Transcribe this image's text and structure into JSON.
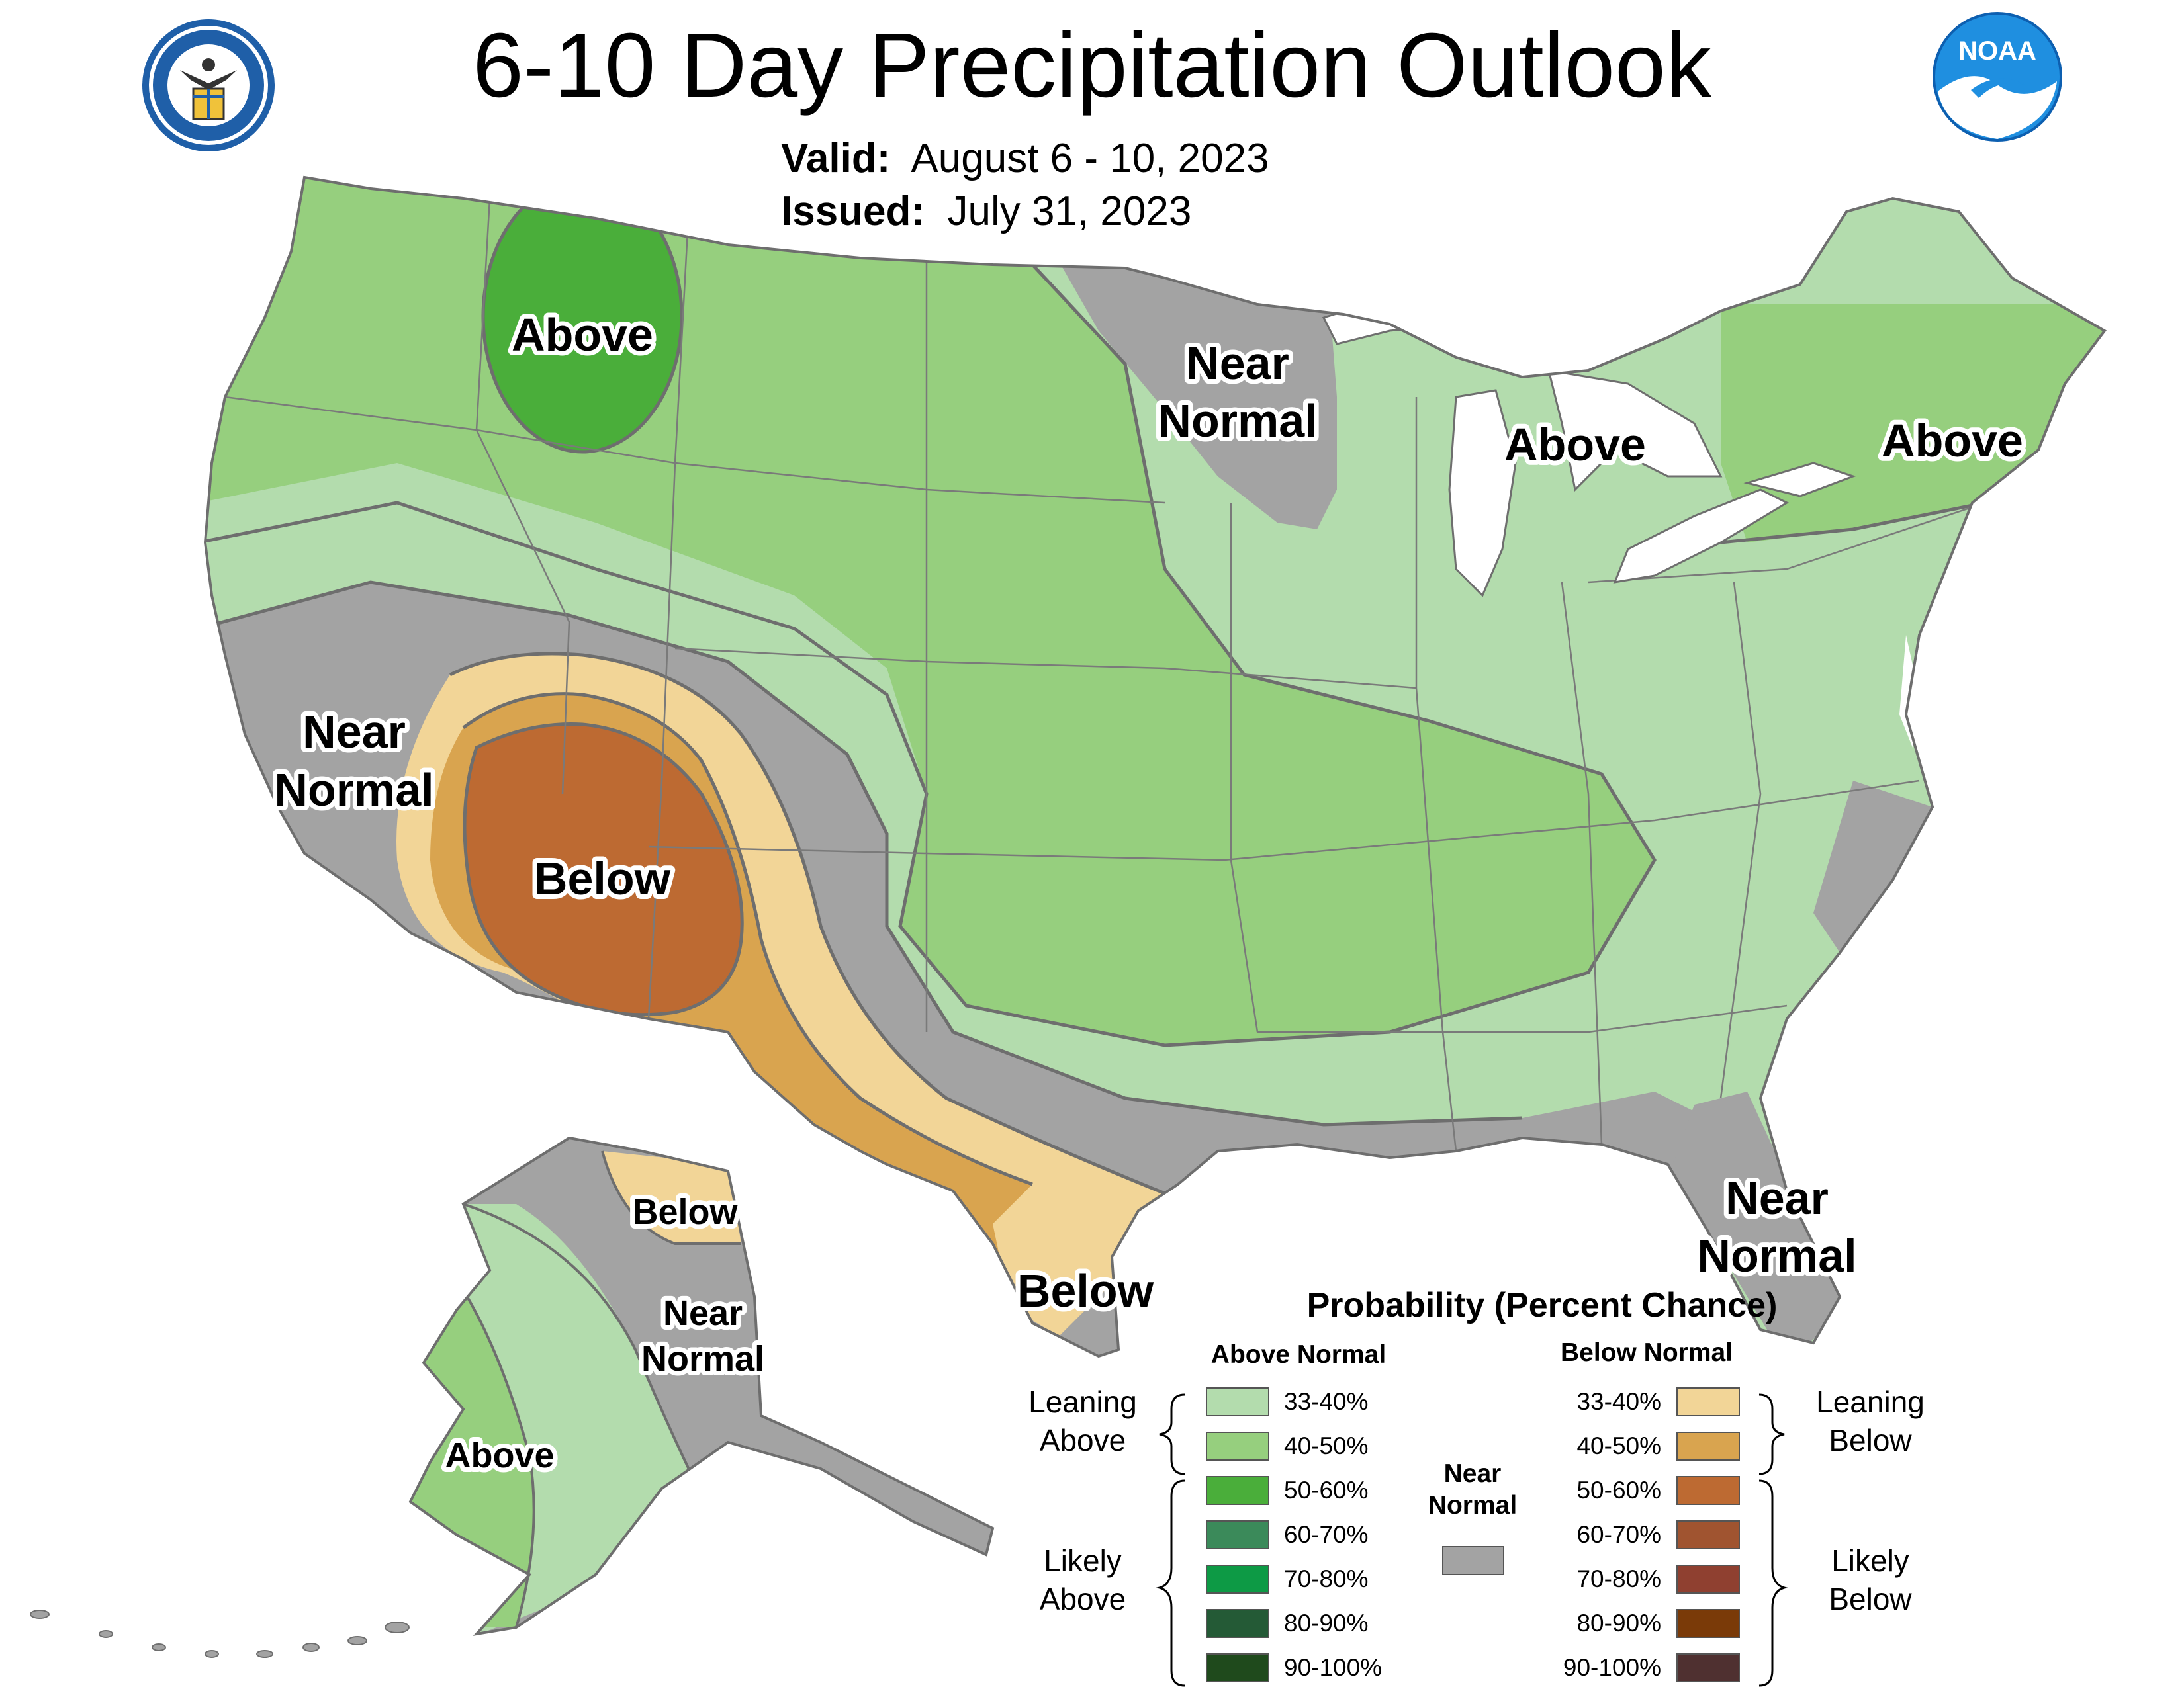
{
  "title": "6-10 Day Precipitation Outlook",
  "valid_label": "Valid:",
  "valid_value": "August 6 - 10, 2023",
  "issued_label": "Issued:",
  "issued_value": "July 31, 2023",
  "logos": {
    "left": {
      "icon": "department-of-commerce-seal-icon",
      "text": "DEPARTMENT OF COMMERCE · UNITED STATES OF AMERICA"
    },
    "right": {
      "icon": "noaa-logo-icon",
      "text": "NOAA"
    }
  },
  "map_labels": {
    "montana_above": "Above",
    "minnesota_near_1": "Near",
    "minnesota_near_2": "Normal",
    "michigan_above": "Above",
    "northeast_above": "Above",
    "california_near_1": "Near",
    "california_near_2": "Normal",
    "southwest_below": "Below",
    "texas_below": "Below",
    "florida_near_1": "Near",
    "florida_near_2": "Normal",
    "alaska_below": "Below",
    "alaska_near_1": "Near",
    "alaska_near_2": "Normal",
    "alaska_above": "Above"
  },
  "legend": {
    "title": "Probability (Percent Chance)",
    "above_header": "Above Normal",
    "below_header": "Below Normal",
    "near_header_1": "Near",
    "near_header_2": "Normal",
    "leaning_above_1": "Leaning",
    "leaning_above_2": "Above",
    "likely_above_1": "Likely",
    "likely_above_2": "Above",
    "leaning_below_1": "Leaning",
    "leaning_below_2": "Below",
    "likely_below_1": "Likely",
    "likely_below_2": "Below",
    "above": [
      {
        "label": "33-40%",
        "color": "#b3dcad"
      },
      {
        "label": "40-50%",
        "color": "#96cf7e"
      },
      {
        "label": "50-60%",
        "color": "#4aae3a"
      },
      {
        "label": "60-70%",
        "color": "#3b8a5a"
      },
      {
        "label": "70-80%",
        "color": "#0d9a45"
      },
      {
        "label": "80-90%",
        "color": "#245a36"
      },
      {
        "label": "90-100%",
        "color": "#1f4a1c"
      }
    ],
    "below": [
      {
        "label": "33-40%",
        "color": "#f2d597"
      },
      {
        "label": "40-50%",
        "color": "#d9a44f"
      },
      {
        "label": "50-60%",
        "color": "#bd6a32"
      },
      {
        "label": "60-70%",
        "color": "#a05430"
      },
      {
        "label": "70-80%",
        "color": "#8f4030"
      },
      {
        "label": "80-90%",
        "color": "#7a3a08"
      },
      {
        "label": "90-100%",
        "color": "#4f3030"
      }
    ],
    "near_color": "#a3a3a3"
  },
  "colors": {
    "near_normal": "#a3a3a3",
    "lean_above": "#b3dcad",
    "above_40_50": "#96cf7e",
    "above_50_60": "#4aae3a",
    "lean_below": "#f2d597",
    "below_40_50": "#d9a44f",
    "below_50_60": "#bd6a32",
    "water": "#ffffff",
    "border": "#6e6e6e"
  }
}
